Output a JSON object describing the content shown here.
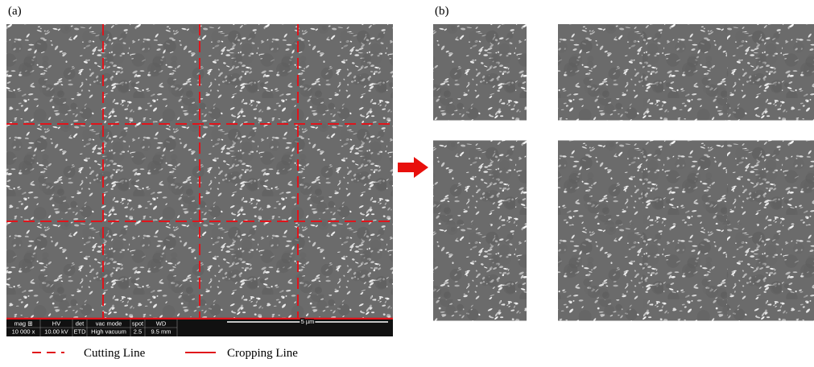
{
  "panels": {
    "a": {
      "label": "(a)"
    },
    "b": {
      "label": "(b)"
    }
  },
  "info_bar": {
    "headers": [
      "mag ⊞",
      "HV",
      "det",
      "vac mode",
      "spot",
      "WD"
    ],
    "values": [
      "10 000 x",
      "10.00 kV",
      "ETD",
      "High vacuum",
      "2.5",
      "9.5 mm"
    ],
    "scale": "5 µm"
  },
  "legend": {
    "items": [
      "Cutting Line",
      "Cropping Line"
    ]
  }
}
